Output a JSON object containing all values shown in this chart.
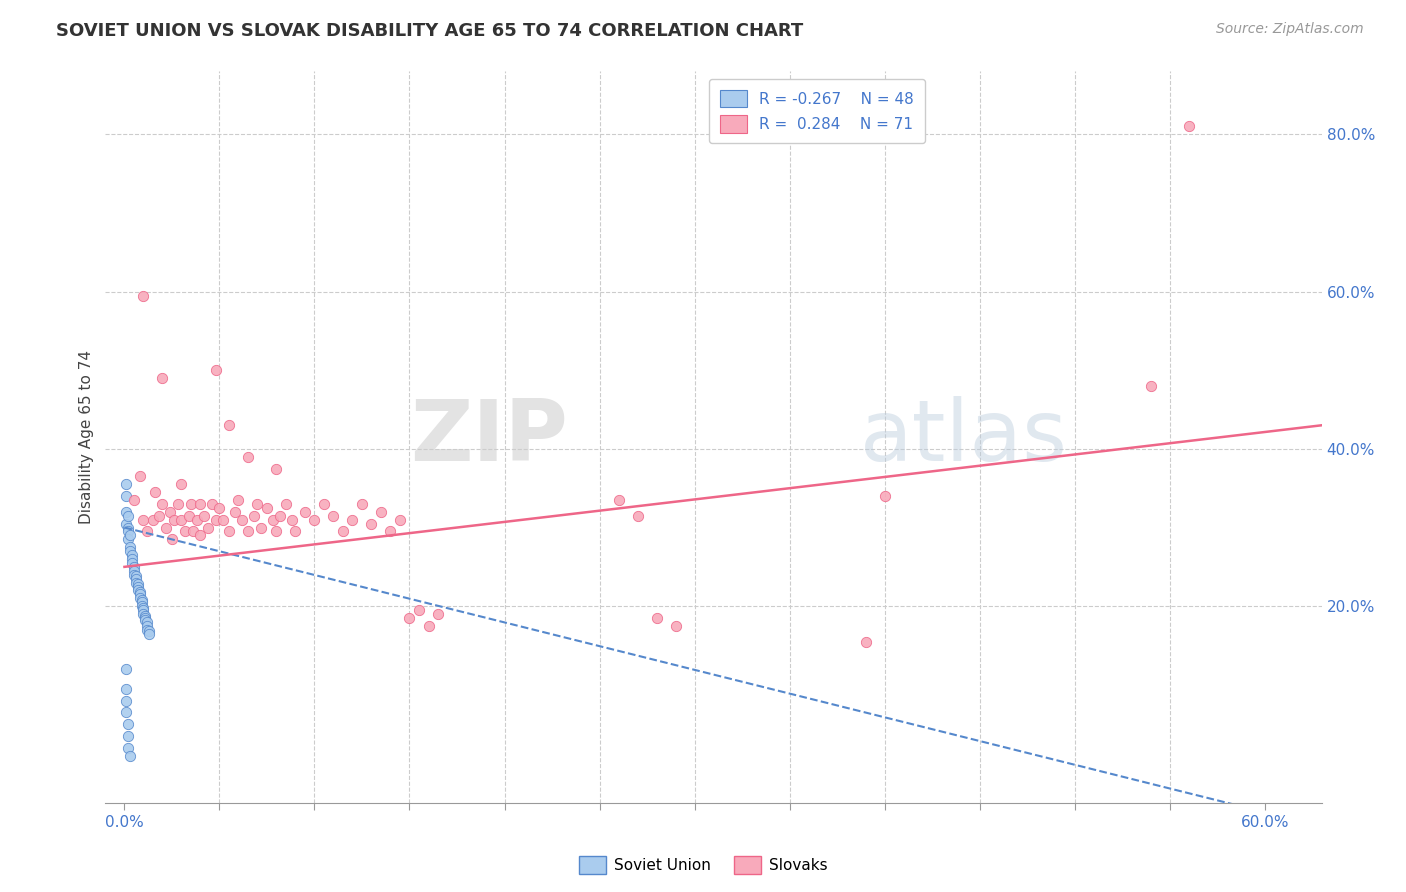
{
  "title": "SOVIET UNION VS SLOVAK DISABILITY AGE 65 TO 74 CORRELATION CHART",
  "source": "Source: ZipAtlas.com",
  "ylabel_label": "Disability Age 65 to 74",
  "x_tick_labels_shown": [
    "0.0%",
    "60.0%"
  ],
  "x_ticks_shown": [
    0.0,
    0.6
  ],
  "x_minor_ticks": [
    0.05,
    0.1,
    0.15,
    0.2,
    0.25,
    0.3,
    0.35,
    0.4,
    0.45,
    0.5,
    0.55
  ],
  "y_tick_labels_right": [
    "20.0%",
    "40.0%",
    "60.0%",
    "80.0%"
  ],
  "y_ticks_right": [
    0.2,
    0.4,
    0.6,
    0.8
  ],
  "xlim": [
    -0.01,
    0.63
  ],
  "ylim": [
    -0.05,
    0.88
  ],
  "soviet_color": "#aaccee",
  "slovak_color": "#f8aabb",
  "soviet_line_color": "#5588cc",
  "slovak_line_color": "#ee6688",
  "background_color": "#ffffff",
  "grid_color": "#cccccc",
  "watermark_zip": "ZIP",
  "watermark_atlas": "atlas",
  "soviet_dots": [
    [
      0.001,
      0.355
    ],
    [
      0.001,
      0.32
    ],
    [
      0.001,
      0.305
    ],
    [
      0.002,
      0.3
    ],
    [
      0.002,
      0.295
    ],
    [
      0.002,
      0.285
    ],
    [
      0.003,
      0.29
    ],
    [
      0.003,
      0.275
    ],
    [
      0.003,
      0.27
    ],
    [
      0.004,
      0.265
    ],
    [
      0.004,
      0.26
    ],
    [
      0.004,
      0.255
    ],
    [
      0.005,
      0.25
    ],
    [
      0.005,
      0.245
    ],
    [
      0.005,
      0.24
    ],
    [
      0.006,
      0.238
    ],
    [
      0.006,
      0.235
    ],
    [
      0.006,
      0.23
    ],
    [
      0.007,
      0.228
    ],
    [
      0.007,
      0.225
    ],
    [
      0.007,
      0.22
    ],
    [
      0.008,
      0.218
    ],
    [
      0.008,
      0.215
    ],
    [
      0.008,
      0.21
    ],
    [
      0.009,
      0.208
    ],
    [
      0.009,
      0.205
    ],
    [
      0.009,
      0.2
    ],
    [
      0.01,
      0.198
    ],
    [
      0.01,
      0.195
    ],
    [
      0.01,
      0.19
    ],
    [
      0.011,
      0.188
    ],
    [
      0.011,
      0.185
    ],
    [
      0.011,
      0.183
    ],
    [
      0.012,
      0.18
    ],
    [
      0.012,
      0.175
    ],
    [
      0.012,
      0.17
    ],
    [
      0.013,
      0.168
    ],
    [
      0.013,
      0.165
    ],
    [
      0.001,
      0.12
    ],
    [
      0.001,
      0.095
    ],
    [
      0.001,
      0.065
    ],
    [
      0.002,
      0.05
    ],
    [
      0.002,
      0.035
    ],
    [
      0.002,
      0.02
    ],
    [
      0.003,
      0.01
    ],
    [
      0.001,
      0.34
    ],
    [
      0.002,
      0.315
    ],
    [
      0.001,
      0.08
    ]
  ],
  "slovak_dots": [
    [
      0.005,
      0.335
    ],
    [
      0.008,
      0.365
    ],
    [
      0.01,
      0.31
    ],
    [
      0.012,
      0.295
    ],
    [
      0.015,
      0.31
    ],
    [
      0.016,
      0.345
    ],
    [
      0.018,
      0.315
    ],
    [
      0.02,
      0.33
    ],
    [
      0.022,
      0.3
    ],
    [
      0.024,
      0.32
    ],
    [
      0.025,
      0.285
    ],
    [
      0.026,
      0.31
    ],
    [
      0.028,
      0.33
    ],
    [
      0.03,
      0.355
    ],
    [
      0.03,
      0.31
    ],
    [
      0.032,
      0.295
    ],
    [
      0.034,
      0.315
    ],
    [
      0.035,
      0.33
    ],
    [
      0.036,
      0.295
    ],
    [
      0.038,
      0.31
    ],
    [
      0.04,
      0.33
    ],
    [
      0.04,
      0.29
    ],
    [
      0.042,
      0.315
    ],
    [
      0.044,
      0.3
    ],
    [
      0.046,
      0.33
    ],
    [
      0.048,
      0.31
    ],
    [
      0.05,
      0.325
    ],
    [
      0.052,
      0.31
    ],
    [
      0.055,
      0.295
    ],
    [
      0.058,
      0.32
    ],
    [
      0.06,
      0.335
    ],
    [
      0.062,
      0.31
    ],
    [
      0.065,
      0.295
    ],
    [
      0.068,
      0.315
    ],
    [
      0.07,
      0.33
    ],
    [
      0.072,
      0.3
    ],
    [
      0.075,
      0.325
    ],
    [
      0.078,
      0.31
    ],
    [
      0.08,
      0.295
    ],
    [
      0.082,
      0.315
    ],
    [
      0.085,
      0.33
    ],
    [
      0.088,
      0.31
    ],
    [
      0.09,
      0.295
    ],
    [
      0.095,
      0.32
    ],
    [
      0.1,
      0.31
    ],
    [
      0.105,
      0.33
    ],
    [
      0.11,
      0.315
    ],
    [
      0.115,
      0.295
    ],
    [
      0.12,
      0.31
    ],
    [
      0.125,
      0.33
    ],
    [
      0.01,
      0.595
    ],
    [
      0.02,
      0.49
    ],
    [
      0.048,
      0.5
    ],
    [
      0.055,
      0.43
    ],
    [
      0.065,
      0.39
    ],
    [
      0.08,
      0.375
    ],
    [
      0.13,
      0.305
    ],
    [
      0.135,
      0.32
    ],
    [
      0.14,
      0.295
    ],
    [
      0.145,
      0.31
    ],
    [
      0.15,
      0.185
    ],
    [
      0.155,
      0.195
    ],
    [
      0.16,
      0.175
    ],
    [
      0.165,
      0.19
    ],
    [
      0.26,
      0.335
    ],
    [
      0.27,
      0.315
    ],
    [
      0.28,
      0.185
    ],
    [
      0.29,
      0.175
    ],
    [
      0.39,
      0.155
    ],
    [
      0.4,
      0.34
    ],
    [
      0.54,
      0.48
    ],
    [
      0.56,
      0.81
    ]
  ],
  "soviet_reg": [
    0.0,
    0.3,
    0.63,
    -0.08
  ],
  "slovak_reg": [
    0.0,
    0.25,
    0.63,
    0.43
  ]
}
